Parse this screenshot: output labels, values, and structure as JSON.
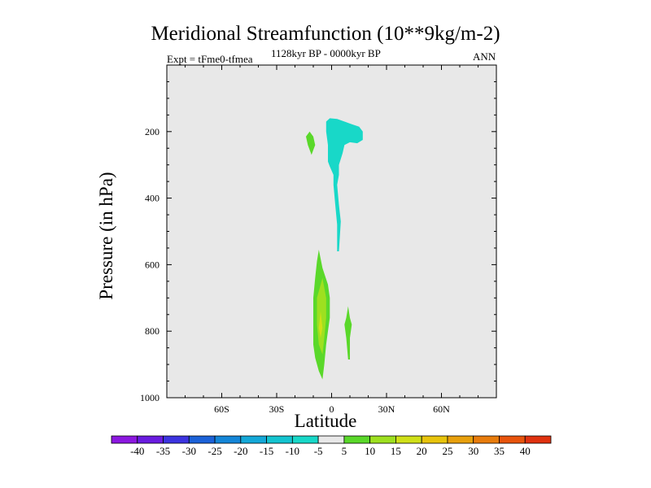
{
  "chart_data": {
    "type": "contour",
    "title": "Meridional Streamfunction (10**9kg/m-2)",
    "experiment": "Expt = tFme0-tfmea",
    "period": "1128kyr BP - 0000kyr BP",
    "season": "ANN",
    "xlabel": "Latitude",
    "ylabel": "Pressure (in hPa)",
    "xlim": [
      -90,
      90
    ],
    "ylim": [
      0,
      1000
    ],
    "y_inverted": true,
    "x_ticks": [
      {
        "value": -60,
        "label": "60S"
      },
      {
        "value": -30,
        "label": "30S"
      },
      {
        "value": 0,
        "label": "0"
      },
      {
        "value": 30,
        "label": "30N"
      },
      {
        "value": 60,
        "label": "60N"
      }
    ],
    "y_ticks": [
      {
        "value": 200,
        "label": "200"
      },
      {
        "value": 400,
        "label": "400"
      },
      {
        "value": 600,
        "label": "600"
      },
      {
        "value": 800,
        "label": "800"
      },
      {
        "value": 1000,
        "label": "1000"
      }
    ],
    "background_color": "#e8e8e8",
    "regions": [
      {
        "name": "upper-tropical-cell",
        "range": "-10 to -5",
        "color": "#18d8c8",
        "points": [
          [
            -3,
            170
          ],
          [
            -1,
            160
          ],
          [
            3,
            162
          ],
          [
            8,
            172
          ],
          [
            11,
            178
          ],
          [
            15,
            185
          ],
          [
            17,
            200
          ],
          [
            17,
            225
          ],
          [
            14,
            235
          ],
          [
            10,
            232
          ],
          [
            7,
            240
          ],
          [
            6,
            265
          ],
          [
            4,
            300
          ],
          [
            4,
            330
          ],
          [
            3,
            360
          ],
          [
            4,
            420
          ],
          [
            5,
            470
          ],
          [
            4,
            560
          ],
          [
            3,
            560
          ],
          [
            3,
            480
          ],
          [
            2,
            420
          ],
          [
            1,
            360
          ],
          [
            1,
            330
          ],
          [
            -1,
            305
          ],
          [
            -2,
            290
          ],
          [
            -2,
            240
          ],
          [
            -3,
            200
          ]
        ]
      },
      {
        "name": "upper-south-cell",
        "range": "5 to 10",
        "color": "#5ad82a",
        "points": [
          [
            -12,
            200
          ],
          [
            -10,
            215
          ],
          [
            -9,
            240
          ],
          [
            -11,
            270
          ],
          [
            -13,
            240
          ],
          [
            -14,
            215
          ]
        ]
      },
      {
        "name": "lower-south-cell",
        "range": "5 to 10",
        "color": "#5ad82a",
        "points": [
          [
            -7,
            555
          ],
          [
            -5,
            610
          ],
          [
            -2,
            660
          ],
          [
            -1,
            700
          ],
          [
            -1,
            760
          ],
          [
            -2,
            800
          ],
          [
            -3,
            840
          ],
          [
            -4,
            900
          ],
          [
            -5,
            945
          ],
          [
            -7,
            920
          ],
          [
            -9,
            880
          ],
          [
            -10,
            840
          ],
          [
            -10,
            760
          ],
          [
            -10,
            700
          ],
          [
            -9,
            640
          ],
          [
            -8,
            590
          ]
        ]
      },
      {
        "name": "lower-south-core",
        "range": "10 to 15",
        "color": "#9ee020",
        "points": [
          [
            -5,
            640
          ],
          [
            -3,
            700
          ],
          [
            -3,
            760
          ],
          [
            -4,
            820
          ],
          [
            -5,
            870
          ],
          [
            -7,
            840
          ],
          [
            -8,
            780
          ],
          [
            -8,
            700
          ]
        ]
      },
      {
        "name": "lower-south-peak",
        "range": "15 to 20",
        "color": "#d0e018",
        "points": [
          [
            -6,
            740
          ],
          [
            -5,
            790
          ],
          [
            -6,
            820
          ],
          [
            -7,
            790
          ]
        ]
      },
      {
        "name": "lower-north-cell",
        "range": "5 to 10",
        "color": "#5ad82a",
        "points": [
          [
            9,
            725
          ],
          [
            10,
            760
          ],
          [
            11,
            780
          ],
          [
            10,
            820
          ],
          [
            10,
            885
          ],
          [
            9,
            885
          ],
          [
            8,
            820
          ],
          [
            7,
            780
          ],
          [
            8,
            760
          ]
        ]
      }
    ],
    "colorbar": {
      "labels": [
        "-40",
        "-35",
        "-30",
        "-25",
        "-20",
        "-15",
        "-10",
        "-5",
        "5",
        "10",
        "15",
        "20",
        "25",
        "30",
        "35",
        "40"
      ],
      "colors": [
        "#8c18e0",
        "#6a1ce0",
        "#3c34e0",
        "#1c62d8",
        "#1486d8",
        "#14a8d8",
        "#14c4d0",
        "#18d8c8",
        "#e8e8e8",
        "#5ad82a",
        "#9ee020",
        "#d0e018",
        "#e8c40c",
        "#e8a00c",
        "#e87c0c",
        "#e8540c",
        "#e03210"
      ]
    }
  }
}
